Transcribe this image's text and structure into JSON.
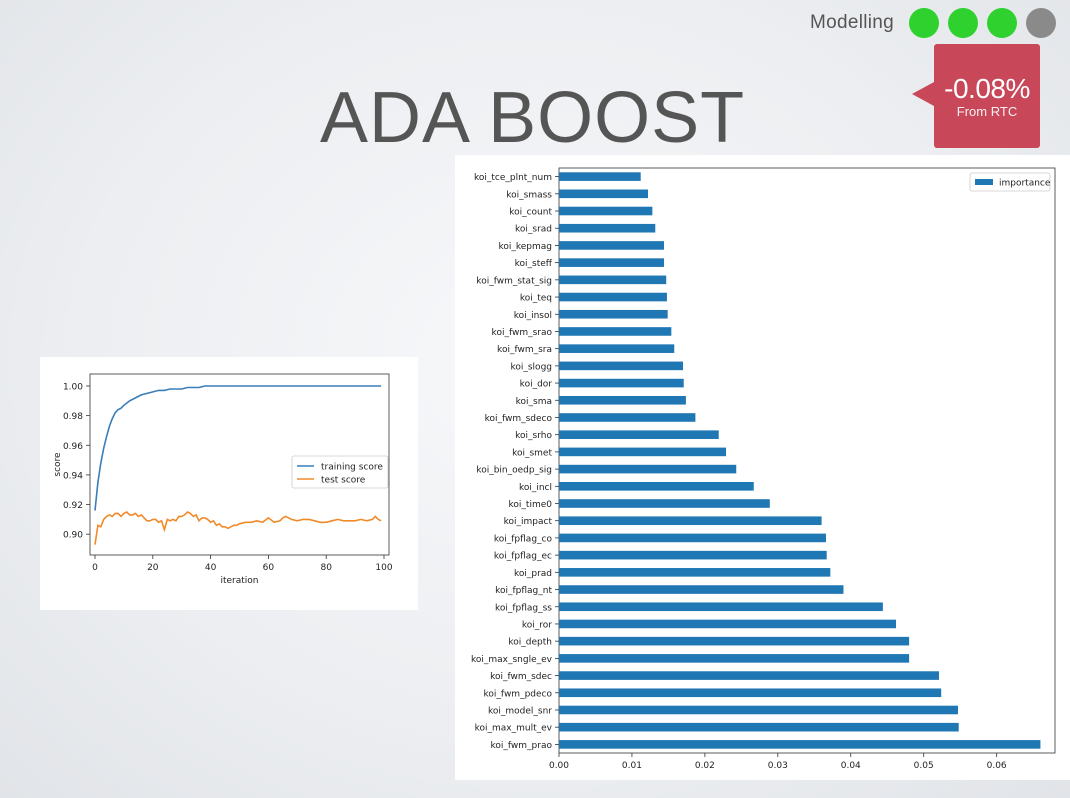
{
  "header": {
    "section_label": "Modelling",
    "dots": [
      {
        "state": "complete",
        "color": "#2ed12e"
      },
      {
        "state": "complete",
        "color": "#2ed12e"
      },
      {
        "state": "complete",
        "color": "#2ed12e"
      },
      {
        "state": "pending",
        "color": "#8a8a8a"
      }
    ]
  },
  "slide": {
    "title": "ADA BOOST",
    "callout": {
      "value": "-0.08%",
      "subtitle": "From RTC",
      "color": "#c8485a"
    }
  },
  "chart_data": [
    {
      "type": "line",
      "xlabel": "iteration",
      "ylabel": "score",
      "xlim": [
        0,
        100
      ],
      "ylim": [
        0.89,
        1.0
      ],
      "xticks": [
        "0",
        "20",
        "40",
        "60",
        "80",
        "100"
      ],
      "yticks": [
        "0.90",
        "0.92",
        "0.94",
        "0.96",
        "0.98",
        "1.00"
      ],
      "legend_position": "right",
      "series": [
        {
          "name": "training score",
          "color": "#3a7db8",
          "x": [
            0,
            1,
            2,
            3,
            4,
            5,
            6,
            7,
            8,
            9,
            10,
            12,
            14,
            16,
            18,
            20,
            22,
            24,
            26,
            28,
            30,
            32,
            34,
            36,
            38,
            40,
            45,
            50,
            55,
            60,
            65,
            70,
            75,
            80,
            85,
            90,
            95,
            99
          ],
          "values": [
            0.916,
            0.935,
            0.948,
            0.958,
            0.966,
            0.973,
            0.978,
            0.982,
            0.984,
            0.985,
            0.987,
            0.99,
            0.992,
            0.994,
            0.995,
            0.996,
            0.997,
            0.997,
            0.998,
            0.998,
            0.998,
            0.999,
            0.999,
            0.999,
            1.0,
            1.0,
            1.0,
            1.0,
            1.0,
            1.0,
            1.0,
            1.0,
            1.0,
            1.0,
            1.0,
            1.0,
            1.0,
            1.0
          ]
        },
        {
          "name": "test score",
          "color": "#f08a2a",
          "x": [
            0,
            1,
            2,
            3,
            4,
            5,
            6,
            7,
            8,
            9,
            10,
            11,
            12,
            13,
            14,
            15,
            16,
            17,
            18,
            19,
            20,
            21,
            22,
            23,
            24,
            25,
            26,
            27,
            28,
            29,
            30,
            31,
            32,
            33,
            34,
            35,
            36,
            37,
            38,
            39,
            40,
            41,
            42,
            43,
            44,
            45,
            46,
            47,
            48,
            49,
            50,
            52,
            54,
            56,
            58,
            60,
            62,
            64,
            65,
            66,
            68,
            70,
            72,
            74,
            76,
            78,
            80,
            82,
            84,
            86,
            88,
            90,
            92,
            94,
            96,
            97,
            98,
            99
          ],
          "values": [
            0.893,
            0.906,
            0.905,
            0.91,
            0.912,
            0.913,
            0.912,
            0.914,
            0.914,
            0.912,
            0.914,
            0.915,
            0.913,
            0.913,
            0.914,
            0.912,
            0.913,
            0.911,
            0.909,
            0.909,
            0.91,
            0.91,
            0.908,
            0.909,
            0.903,
            0.91,
            0.909,
            0.91,
            0.909,
            0.912,
            0.912,
            0.913,
            0.915,
            0.914,
            0.912,
            0.913,
            0.909,
            0.911,
            0.911,
            0.91,
            0.908,
            0.909,
            0.906,
            0.907,
            0.905,
            0.905,
            0.904,
            0.905,
            0.906,
            0.906,
            0.907,
            0.908,
            0.908,
            0.909,
            0.908,
            0.911,
            0.908,
            0.909,
            0.911,
            0.912,
            0.91,
            0.909,
            0.91,
            0.91,
            0.909,
            0.908,
            0.908,
            0.909,
            0.91,
            0.909,
            0.909,
            0.909,
            0.91,
            0.909,
            0.91,
            0.912,
            0.91,
            0.909
          ]
        }
      ]
    },
    {
      "type": "bar",
      "orientation": "horizontal",
      "xlim": [
        0,
        0.068
      ],
      "xticks": [
        "0.00",
        "0.01",
        "0.02",
        "0.03",
        "0.04",
        "0.05",
        "0.06"
      ],
      "legend_position": "top-right",
      "series": [
        {
          "name": "importance",
          "color": "#1f77b4"
        }
      ],
      "categories": [
        "koi_tce_plnt_num",
        "koi_smass",
        "koi_count",
        "koi_srad",
        "koi_kepmag",
        "koi_steff",
        "koi_fwm_stat_sig",
        "koi_teq",
        "koi_insol",
        "koi_fwm_srao",
        "koi_fwm_sra",
        "koi_slogg",
        "koi_dor",
        "koi_sma",
        "koi_fwm_sdeco",
        "koi_srho",
        "koi_smet",
        "koi_bin_oedp_sig",
        "koi_incl",
        "koi_time0",
        "koi_impact",
        "koi_fpflag_co",
        "koi_fpflag_ec",
        "koi_prad",
        "koi_fpflag_nt",
        "koi_fpflag_ss",
        "koi_ror",
        "koi_depth",
        "koi_max_sngle_ev",
        "koi_fwm_sdec",
        "koi_fwm_pdeco",
        "koi_model_snr",
        "koi_max_mult_ev",
        "koi_fwm_prao"
      ],
      "values": [
        0.0112,
        0.0122,
        0.0128,
        0.0132,
        0.0144,
        0.0144,
        0.0147,
        0.0148,
        0.0149,
        0.0154,
        0.0158,
        0.017,
        0.0171,
        0.0174,
        0.0187,
        0.0219,
        0.0229,
        0.0243,
        0.0267,
        0.0289,
        0.036,
        0.0366,
        0.0367,
        0.0372,
        0.039,
        0.0444,
        0.0462,
        0.048,
        0.048,
        0.0521,
        0.0524,
        0.0547,
        0.0548,
        0.066
      ]
    }
  ]
}
